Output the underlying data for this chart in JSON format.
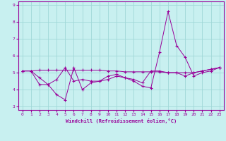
{
  "title": "",
  "xlabel": "Windchill (Refroidissement éolien,°C)",
  "ylabel": "",
  "bg_color": "#c8f0f0",
  "grid_color": "#a0d8d8",
  "line_color": "#990099",
  "x": [
    0,
    1,
    2,
    3,
    4,
    5,
    6,
    7,
    8,
    9,
    10,
    11,
    12,
    13,
    14,
    15,
    16,
    17,
    18,
    19,
    20,
    21,
    22,
    23
  ],
  "line1": [
    5.1,
    5.1,
    5.15,
    5.15,
    5.15,
    5.15,
    5.15,
    5.15,
    5.15,
    5.15,
    5.1,
    5.1,
    5.05,
    5.05,
    5.05,
    5.05,
    5.05,
    5.0,
    5.0,
    5.0,
    5.0,
    5.1,
    5.2,
    5.3
  ],
  "line2": [
    5.1,
    5.1,
    4.3,
    4.3,
    3.7,
    3.4,
    5.3,
    4.0,
    4.4,
    4.5,
    4.6,
    4.8,
    4.7,
    4.5,
    4.2,
    4.1,
    6.2,
    8.6,
    6.6,
    5.9,
    4.8,
    5.0,
    5.1,
    5.3
  ],
  "line3": [
    5.1,
    5.1,
    4.7,
    4.3,
    4.6,
    5.3,
    4.5,
    4.6,
    4.5,
    4.5,
    4.8,
    4.9,
    4.7,
    4.6,
    4.4,
    5.1,
    5.1,
    5.0,
    5.0,
    4.8,
    5.0,
    5.1,
    5.2,
    5.3
  ],
  "ylim": [
    2.8,
    9.2
  ],
  "yticks": [
    3,
    4,
    5,
    6,
    7,
    8,
    9
  ],
  "xlim": [
    -0.5,
    23.5
  ],
  "xticks": [
    0,
    1,
    2,
    3,
    4,
    5,
    6,
    7,
    8,
    9,
    10,
    11,
    12,
    13,
    14,
    15,
    16,
    17,
    18,
    19,
    20,
    21,
    22,
    23
  ],
  "tick_fontsize": 4.5,
  "xlabel_fontsize": 5.0
}
